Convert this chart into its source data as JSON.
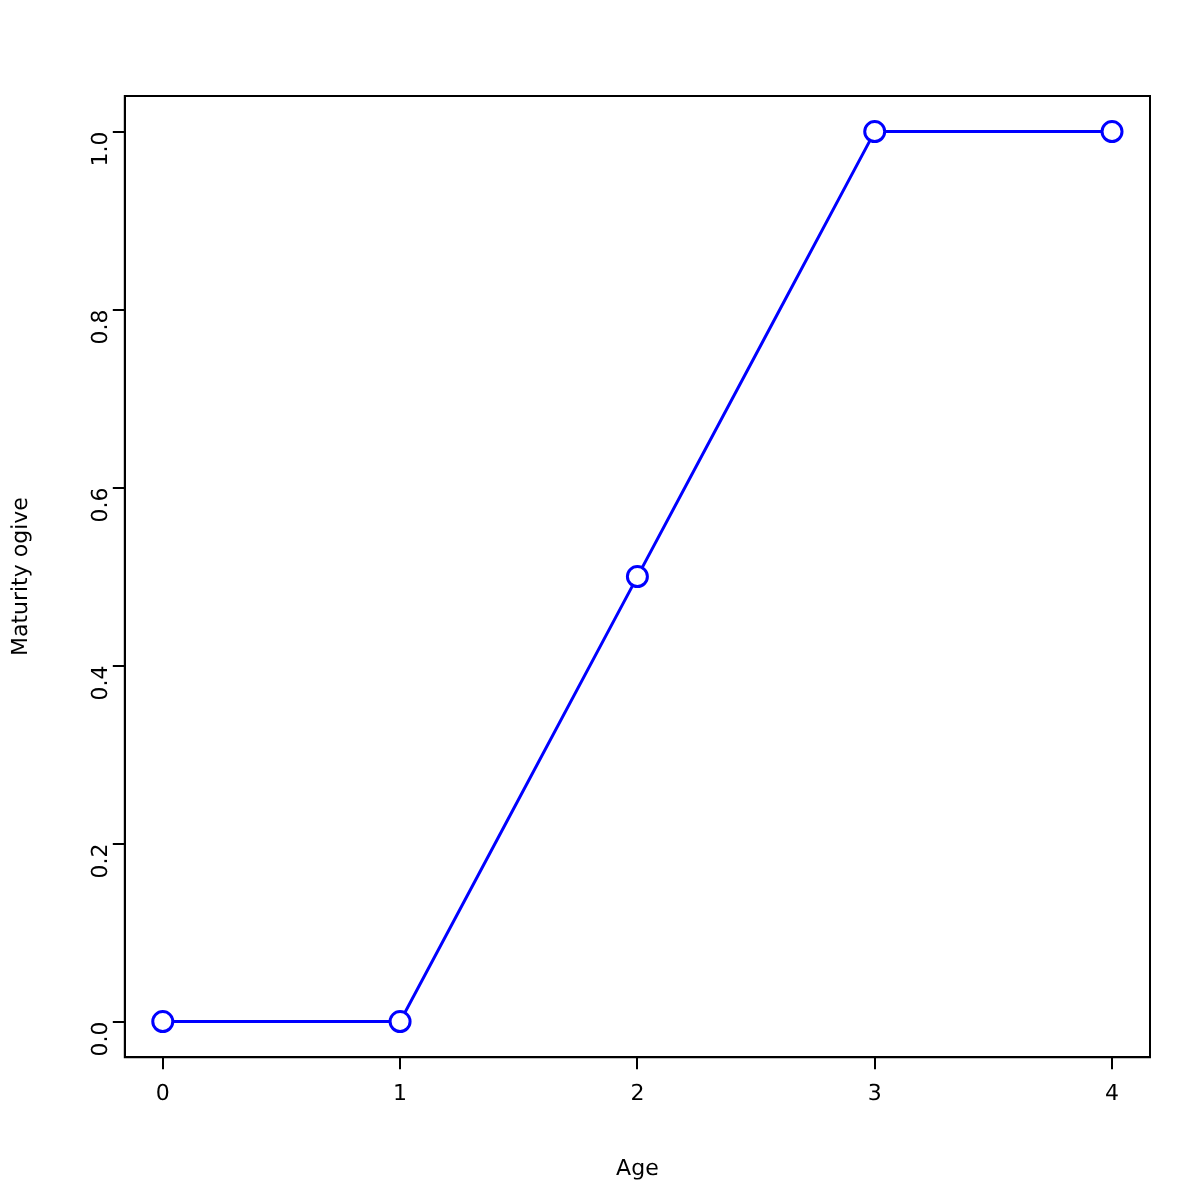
{
  "chart_data": {
    "type": "line",
    "xlabel": "Age",
    "ylabel": "Maturity ogive",
    "x": [
      0,
      1,
      2,
      3,
      4
    ],
    "series": [
      {
        "color": "#0000ff",
        "values": [
          0,
          0,
          0.5,
          1,
          1
        ]
      }
    ],
    "xlim": [
      -0.16,
      4.16
    ],
    "xticks": [
      0,
      1,
      2,
      3,
      4
    ],
    "ylim": [
      -0.04,
      1.04
    ],
    "yticks": [
      {
        "value": 0,
        "label": "0.0"
      },
      {
        "value": 0.2,
        "label": "0.2"
      },
      {
        "value": 0.4,
        "label": "0.4"
      },
      {
        "value": 0.6,
        "label": "0.6"
      },
      {
        "value": 0.8,
        "label": "0.8"
      },
      {
        "value": 1,
        "label": "1.0"
      }
    ],
    "grid": false,
    "legend": false,
    "marker": "circle",
    "line_style": "solid"
  }
}
